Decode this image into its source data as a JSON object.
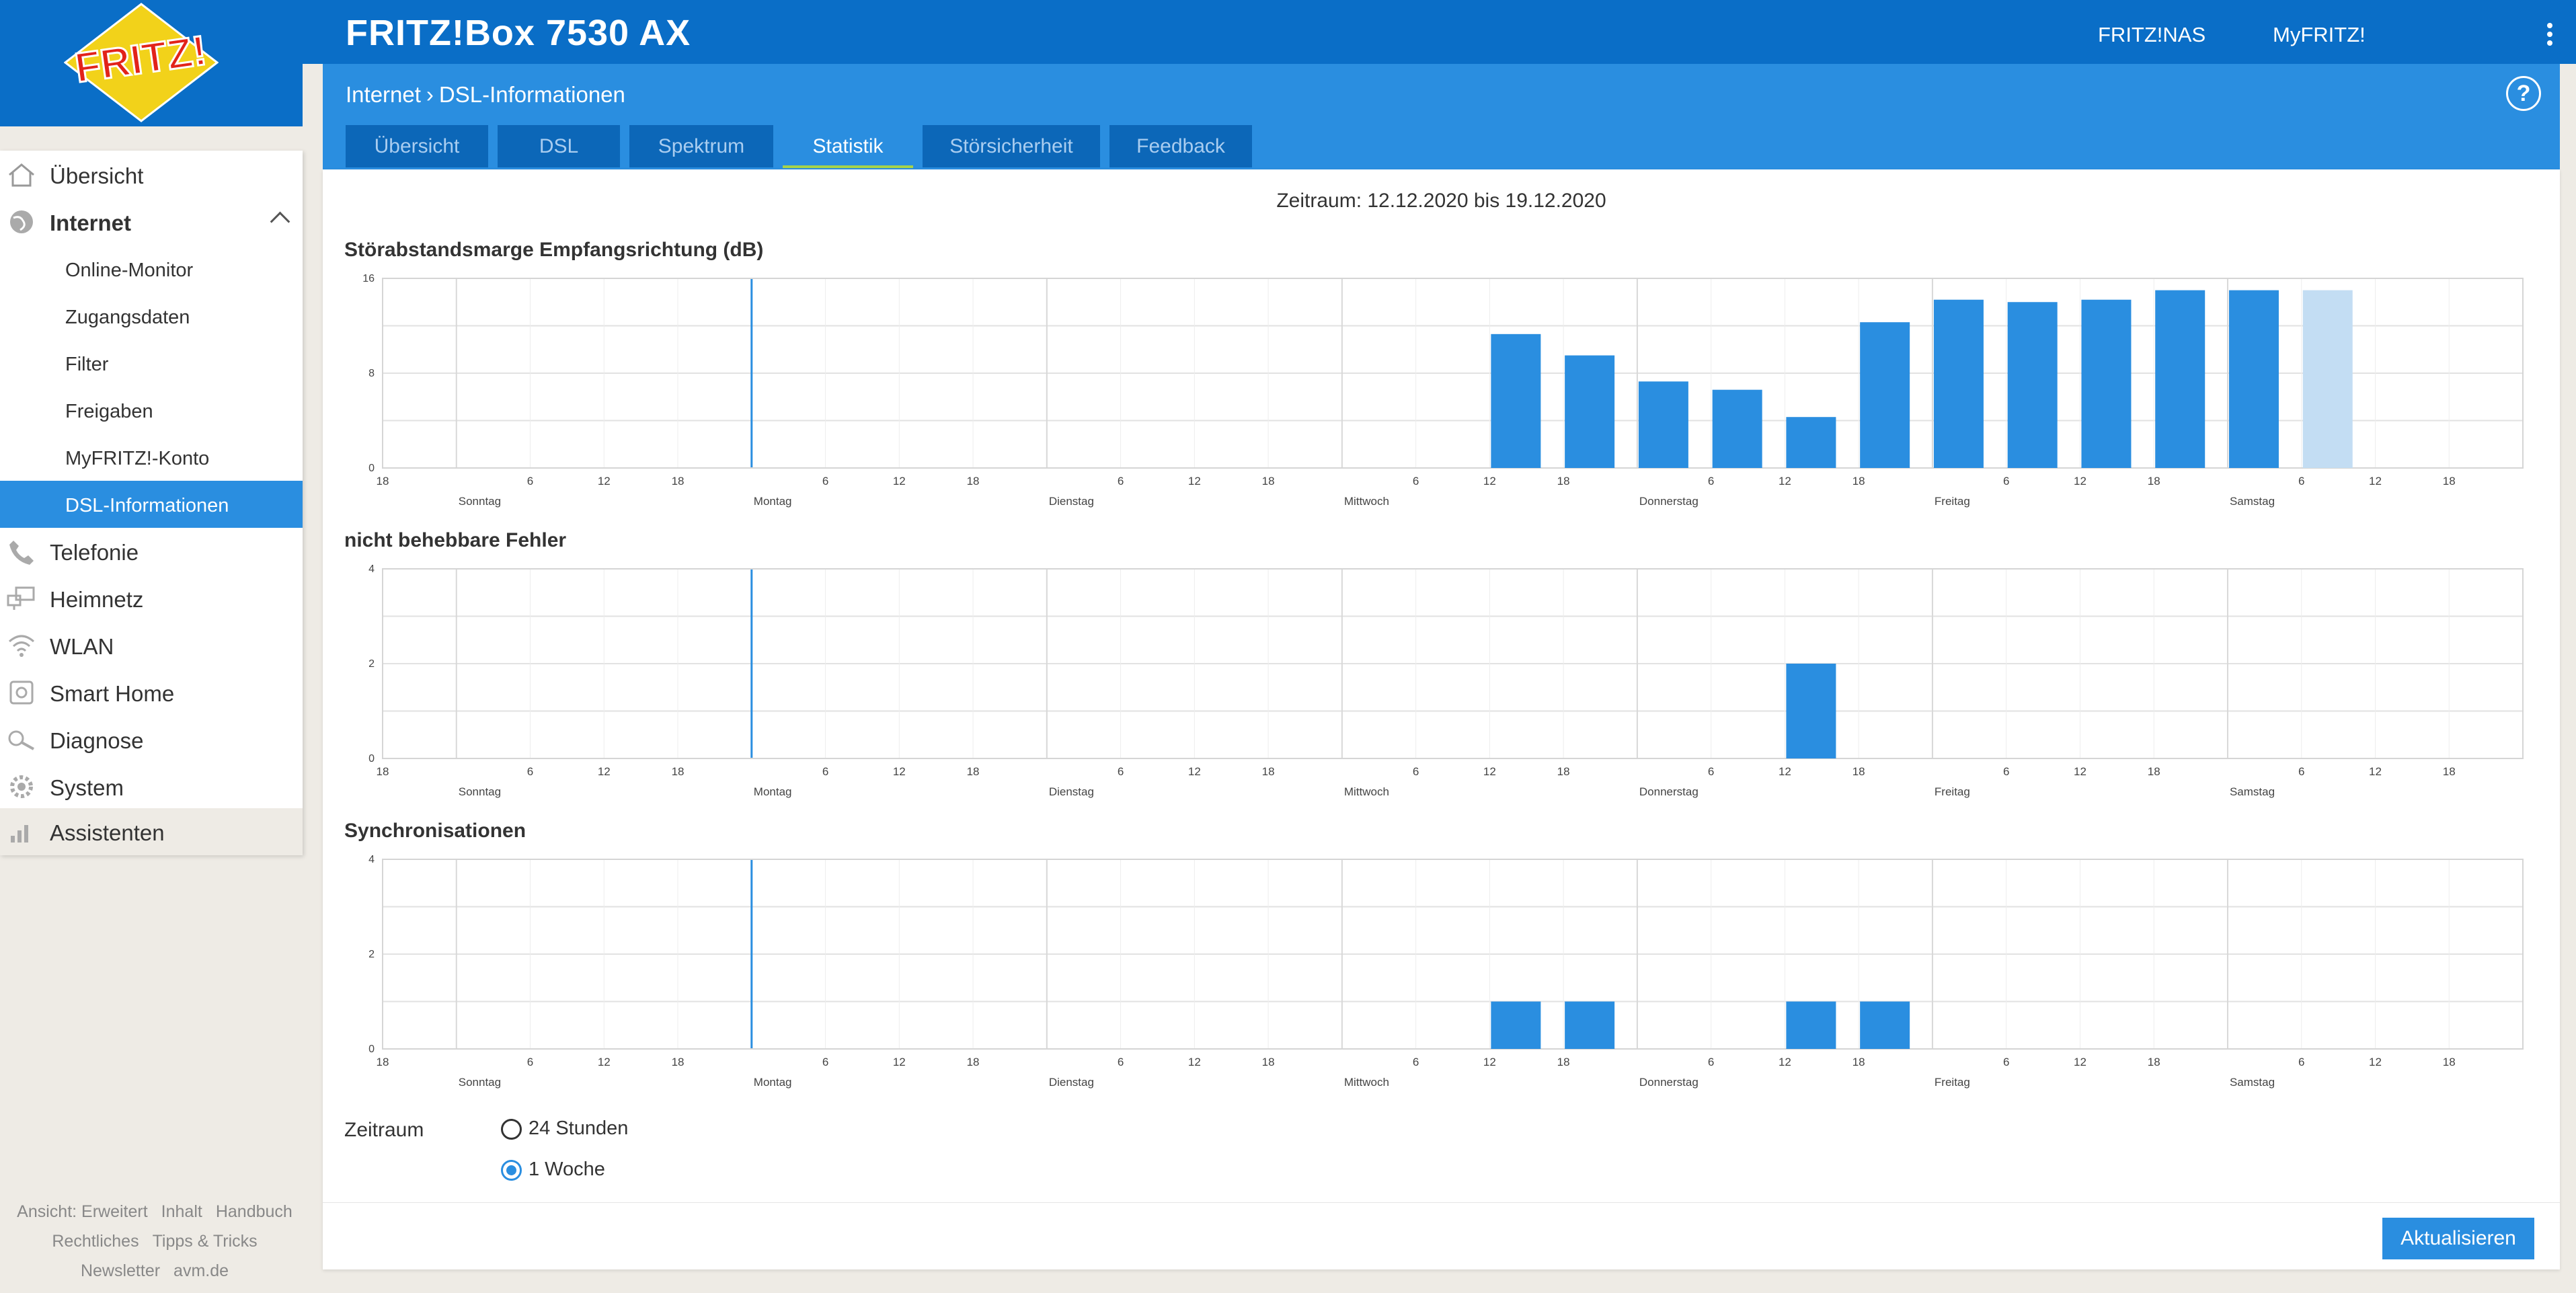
{
  "header": {
    "title": "FRITZ!Box 7530 AX",
    "logo_text": "FRITZ!",
    "links": [
      "FRITZ!NAS",
      "MyFRITZ!"
    ]
  },
  "breadcrumb": {
    "parent": "Internet",
    "current": "DSL-Informationen"
  },
  "help_label": "?",
  "tabs": [
    {
      "label": "Übersicht",
      "active": false
    },
    {
      "label": "DSL",
      "active": false
    },
    {
      "label": "Spektrum",
      "active": false
    },
    {
      "label": "Statistik",
      "active": true
    },
    {
      "label": "Störsicherheit",
      "active": false
    },
    {
      "label": "Feedback",
      "active": false
    }
  ],
  "sidebar": {
    "items": [
      {
        "label": "Übersicht",
        "icon": "home-icon"
      },
      {
        "label": "Internet",
        "icon": "globe-icon"
      },
      {
        "label": "Telefonie",
        "icon": "phone-icon"
      },
      {
        "label": "Heimnetz",
        "icon": "network-icon"
      },
      {
        "label": "WLAN",
        "icon": "wifi-icon"
      },
      {
        "label": "Smart Home",
        "icon": "smart-home-icon"
      },
      {
        "label": "Diagnose",
        "icon": "diagnose-icon"
      },
      {
        "label": "System",
        "icon": "gear-icon"
      },
      {
        "label": "Assistenten",
        "icon": "wizard-icon"
      }
    ],
    "subitems": [
      "Online-Monitor",
      "Zugangsdaten",
      "Filter",
      "Freigaben",
      "MyFRITZ!-Konto",
      "DSL-Informationen"
    ],
    "selected_subitem": "DSL-Informationen"
  },
  "footer_links": [
    [
      "Ansicht: Erweitert",
      "Inhalt",
      "Handbuch"
    ],
    [
      "Rechtliches",
      "Tipps & Tricks"
    ],
    [
      "Newsletter",
      "avm.de"
    ]
  ],
  "content": {
    "period": "Zeitraum: 12.12.2020 bis 19.12.2020",
    "zeitraum_label": "Zeitraum",
    "radio_options": [
      {
        "label": "24 Stunden",
        "checked": false
      },
      {
        "label": "1 Woche",
        "checked": true
      }
    ],
    "refresh_label": "Aktualisieren"
  },
  "colors": {
    "brand": "#0a6ec7",
    "accent": "#2a8ee0",
    "bar": "#2a8ee0",
    "bar_light": "#c3ddf3",
    "tab_underline": "#a6d34a"
  },
  "chart_data": [
    {
      "type": "bar",
      "title": "Störabstandsmarge Empfangsrichtung (dB)",
      "ylim": [
        0,
        16
      ],
      "yticks": [
        0,
        8,
        16
      ],
      "x_hour_range": [
        -6,
        168
      ],
      "hour_tick_labels": [
        "18",
        "6",
        "12",
        "18",
        "6",
        "12",
        "18",
        "6",
        "12",
        "18",
        "6",
        "12",
        "18",
        "6",
        "12",
        "18",
        "6",
        "12",
        "18",
        "6",
        "12",
        "18",
        "6",
        "12"
      ],
      "day_labels": [
        "Sonntag",
        "Montag",
        "Dienstag",
        "Mittwoch",
        "Donnerstag",
        "Freitag",
        "Samstag"
      ],
      "bars": [
        {
          "hour": 84,
          "value": 11.3
        },
        {
          "hour": 90,
          "value": 9.5
        },
        {
          "hour": 96,
          "value": 7.3
        },
        {
          "hour": 102,
          "value": 6.6
        },
        {
          "hour": 108,
          "value": 4.3
        },
        {
          "hour": 114,
          "value": 12.3
        },
        {
          "hour": 120,
          "value": 14.2
        },
        {
          "hour": 126,
          "value": 14.0
        },
        {
          "hour": 132,
          "value": 14.2
        },
        {
          "hour": 138,
          "value": 15.0
        },
        {
          "hour": 144,
          "value": 15.0
        },
        {
          "hour": 150,
          "value": 15.0,
          "current": true
        }
      ]
    },
    {
      "type": "bar",
      "title": "nicht behebbare Fehler",
      "ylim": [
        0,
        4
      ],
      "yticks": [
        0,
        2,
        4
      ],
      "x_hour_range": [
        -6,
        168
      ],
      "hour_tick_labels": [
        "18",
        "6",
        "12",
        "18",
        "6",
        "12",
        "18",
        "6",
        "12",
        "18",
        "6",
        "12",
        "18",
        "6",
        "12",
        "18",
        "6",
        "12",
        "18",
        "6",
        "12",
        "18",
        "6",
        "12"
      ],
      "day_labels": [
        "Sonntag",
        "Montag",
        "Dienstag",
        "Mittwoch",
        "Donnerstag",
        "Freitag",
        "Samstag"
      ],
      "bars": [
        {
          "hour": 108,
          "value": 2
        }
      ]
    },
    {
      "type": "bar",
      "title": "Synchronisationen",
      "ylim": [
        0,
        4
      ],
      "yticks": [
        0,
        2,
        4
      ],
      "x_hour_range": [
        -6,
        168
      ],
      "hour_tick_labels": [
        "18",
        "6",
        "12",
        "18",
        "6",
        "12",
        "18",
        "6",
        "12",
        "18",
        "6",
        "12",
        "18",
        "6",
        "12",
        "18",
        "6",
        "12",
        "18",
        "6",
        "12",
        "18",
        "6",
        "12"
      ],
      "day_labels": [
        "Sonntag",
        "Montag",
        "Dienstag",
        "Mittwoch",
        "Donnerstag",
        "Freitag",
        "Samstag"
      ],
      "bars": [
        {
          "hour": 84,
          "value": 1
        },
        {
          "hour": 90,
          "value": 1
        },
        {
          "hour": 108,
          "value": 1
        },
        {
          "hour": 114,
          "value": 1
        }
      ]
    }
  ]
}
